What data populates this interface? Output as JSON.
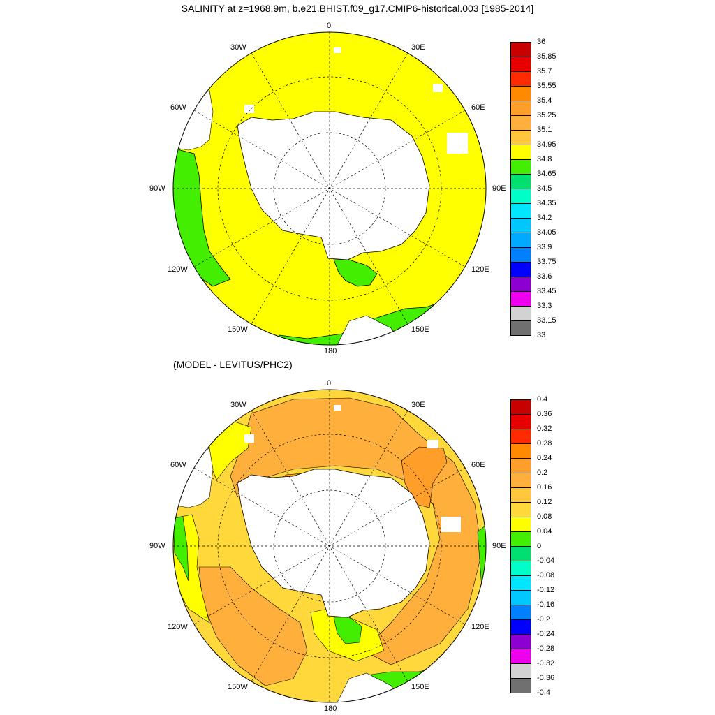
{
  "title": "SALINITY at z=1968.9m, b.e21.BHIST.f09_g17.CMIP6-historical.003 [1985-2014]",
  "subtitle": "(MODEL - LEVITUS/PHC2)",
  "lon_labels": [
    "0",
    "30E",
    "60E",
    "90E",
    "120E",
    "150E",
    "180",
    "150W",
    "120W",
    "90W",
    "60W",
    "30W"
  ],
  "maps": [
    {
      "name": "salinity",
      "legend": {
        "labels": [
          "36",
          "35.85",
          "35.7",
          "35.55",
          "35.4",
          "35.25",
          "35.1",
          "34.95",
          "34.8",
          "34.65",
          "34.5",
          "34.35",
          "34.2",
          "34.05",
          "33.9",
          "33.75",
          "33.6",
          "33.45",
          "33.3",
          "33.15",
          "33"
        ],
        "colors": [
          "#c80000",
          "#e60000",
          "#ff2a00",
          "#ff8a00",
          "#ff9e28",
          "#ffb03c",
          "#ffc83c",
          "#ffff00",
          "#44ee00",
          "#00e070",
          "#00ffc8",
          "#00e6ff",
          "#00c8ff",
          "#00aaff",
          "#0080ff",
          "#0000ff",
          "#8c00d2",
          "#ee00ee",
          "#d2d2d2",
          "#707070"
        ]
      }
    },
    {
      "name": "difference",
      "legend": {
        "labels": [
          "0.4",
          "0.36",
          "0.32",
          "0.28",
          "0.24",
          "0.2",
          "0.16",
          "0.12",
          "0.08",
          "0.04",
          "0",
          "-0.04",
          "-0.08",
          "-0.12",
          "-0.16",
          "-0.2",
          "-0.24",
          "-0.28",
          "-0.32",
          "-0.36",
          "-0.4"
        ],
        "colors": [
          "#c80000",
          "#e60000",
          "#ff2a00",
          "#ff8a00",
          "#ff9e28",
          "#ffb03c",
          "#ffc83c",
          "#ffd83c",
          "#ffff00",
          "#44ee00",
          "#00e070",
          "#00ffc8",
          "#00e6ff",
          "#00c8ff",
          "#0080ff",
          "#0000ff",
          "#8c00d2",
          "#ee00ee",
          "#d2d2d2",
          "#707070"
        ]
      }
    }
  ]
}
